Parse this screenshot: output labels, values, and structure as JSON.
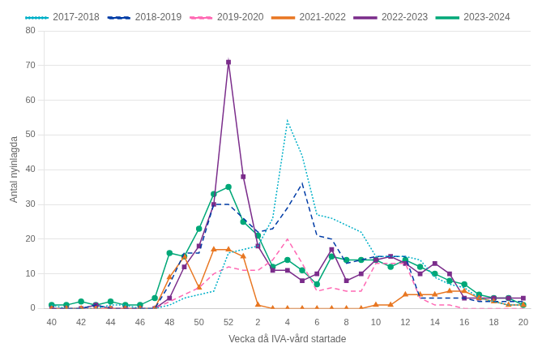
{
  "chart_data": {
    "type": "line",
    "xlabel": "Vecka då IVA-vård startade",
    "ylabel": "Antal nyinlagda",
    "categories": [
      "40",
      null,
      "42",
      null,
      "44",
      null,
      "46",
      null,
      "48",
      null,
      "50",
      null,
      "52",
      null,
      "2",
      null,
      "4",
      null,
      "6",
      null,
      "8",
      null,
      "10",
      null,
      "12",
      null,
      "14",
      null,
      "16",
      null,
      "18",
      null,
      "20"
    ],
    "series": [
      {
        "name": "2017-2018",
        "color": "#00B0C8",
        "line_style": "dotted",
        "marker": "none",
        "values": [
          1,
          0,
          0,
          0,
          1,
          1,
          0,
          0,
          1,
          3,
          4,
          5,
          16,
          17,
          18,
          26,
          54,
          44,
          27,
          26,
          24,
          22,
          15,
          15,
          15,
          14,
          9,
          7,
          6,
          3,
          2,
          1,
          1
        ]
      },
      {
        "name": "2018-2019",
        "color": "#003CA6",
        "line_style": "dashed",
        "marker": "none",
        "values": [
          0,
          0,
          0,
          1,
          0,
          0,
          0,
          0,
          7,
          16,
          16,
          30,
          30,
          26,
          22,
          23,
          29,
          36,
          21,
          20,
          13,
          14,
          15,
          15,
          15,
          3,
          3,
          3,
          3,
          2,
          2,
          2,
          2
        ]
      },
      {
        "name": "2019-2020",
        "color": "#FF69B4",
        "line_style": "dashed",
        "marker": "none",
        "values": [
          0,
          0,
          0,
          0,
          0,
          0,
          0,
          0,
          2,
          4,
          6,
          10,
          12,
          11,
          11,
          14,
          20,
          13,
          5,
          6,
          5,
          5,
          13,
          13,
          13,
          3,
          1,
          1,
          0,
          0,
          0,
          0,
          0
        ]
      },
      {
        "name": "2021-2022",
        "color": "#E87722",
        "line_style": "solid",
        "marker": "triangle",
        "values": [
          0,
          0,
          0,
          0,
          0,
          0,
          0,
          0,
          9,
          15,
          6,
          17,
          17,
          15,
          1,
          0,
          0,
          0,
          0,
          0,
          0,
          0,
          1,
          1,
          4,
          4,
          4,
          5,
          5,
          3,
          2,
          1,
          1
        ]
      },
      {
        "name": "2022-2023",
        "color": "#7B2D8B",
        "line_style": "solid",
        "marker": "square",
        "values": [
          0,
          0,
          0,
          1,
          0,
          0,
          0,
          0,
          3,
          12,
          18,
          30,
          71,
          38,
          18,
          11,
          11,
          8,
          10,
          17,
          8,
          10,
          14,
          15,
          13,
          10,
          13,
          10,
          3,
          3,
          3,
          3,
          3
        ]
      },
      {
        "name": "2023-2024",
        "color": "#00A878",
        "line_style": "solid",
        "marker": "circle",
        "values": [
          1,
          1,
          2,
          1,
          2,
          1,
          1,
          3,
          16,
          15,
          23,
          33,
          35,
          25,
          21,
          12,
          14,
          11,
          7,
          15,
          14,
          14,
          14,
          12,
          14,
          12,
          10,
          8,
          7,
          4,
          3,
          3,
          1
        ]
      }
    ],
    "ylim": [
      0,
      80
    ],
    "yticks": [
      0,
      10,
      20,
      30,
      40,
      50,
      60,
      70,
      80
    ],
    "grid": true,
    "legend": "top"
  }
}
